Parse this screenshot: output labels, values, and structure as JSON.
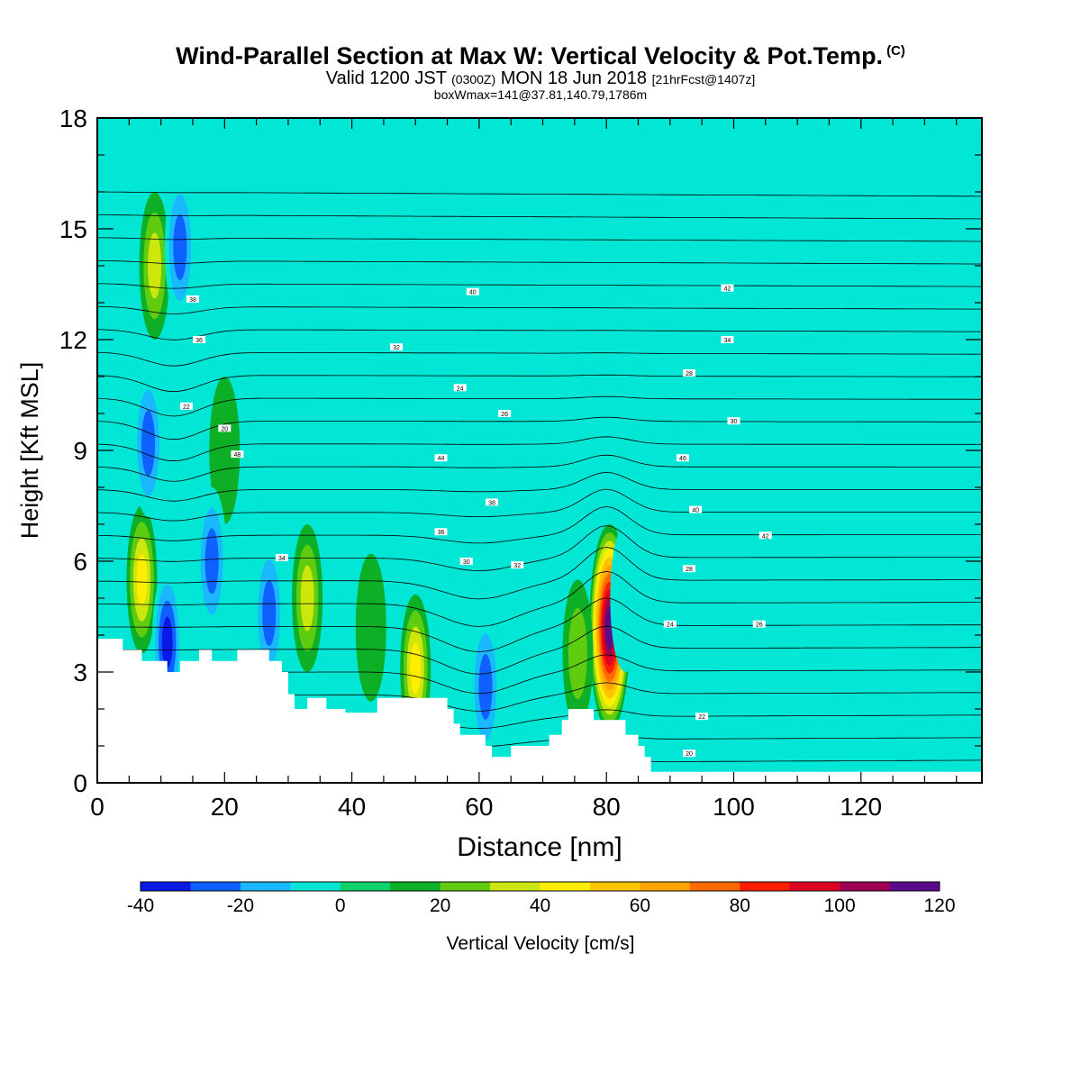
{
  "title": {
    "main": "Wind-Parallel Section at Max W: Vertical Velocity & Pot.Temp.",
    "copyright": "(C)",
    "valid_prefix": "Valid 1200 JST",
    "valid_utc": "(0300Z)",
    "valid_date": "MON 18 Jun 2018",
    "forecast": "[21hrFcst@1407z]",
    "box": "boxWmax=141@37.81,140.79,1786m"
  },
  "chart_data": {
    "type": "heatmap",
    "xlabel": "Distance [nm]",
    "ylabel": "Height [Kft MSL]",
    "xlim": [
      0,
      139
    ],
    "ylim": [
      0,
      18
    ],
    "x_ticks": [
      0,
      20,
      40,
      60,
      80,
      100,
      120
    ],
    "y_ticks": [
      0,
      3,
      6,
      9,
      12,
      15,
      18
    ],
    "colorbar": {
      "label": "Vertical Velocity [cm/s]",
      "levels": [
        -40,
        -30,
        -20,
        -10,
        0,
        10,
        20,
        30,
        40,
        50,
        60,
        70,
        80,
        90,
        100,
        110,
        120
      ],
      "tick_labels": [
        "-40",
        "-20",
        "0",
        "20",
        "40",
        "60",
        "80",
        "100",
        "120"
      ],
      "colors": [
        "#0a18e8",
        "#0e60ff",
        "#1ab8ff",
        "#02e6d6",
        "#0dd26a",
        "#0caf26",
        "#5fcc0f",
        "#cde60c",
        "#ffee00",
        "#ffc400",
        "#ffa400",
        "#ff6a00",
        "#ff1e00",
        "#dc0022",
        "#a00050",
        "#5c0a8c"
      ]
    },
    "background_color": "#02e6d6",
    "terrain_kft": [
      [
        0,
        3.9
      ],
      [
        4,
        3.9
      ],
      [
        4,
        3.6
      ],
      [
        7,
        3.6
      ],
      [
        7,
        3.3
      ],
      [
        11,
        3.3
      ],
      [
        11,
        3.0
      ],
      [
        13,
        3.0
      ],
      [
        13,
        3.3
      ],
      [
        16,
        3.3
      ],
      [
        16,
        3.6
      ],
      [
        18,
        3.6
      ],
      [
        18,
        3.3
      ],
      [
        22,
        3.3
      ],
      [
        22,
        3.6
      ],
      [
        27,
        3.6
      ],
      [
        27,
        3.3
      ],
      [
        29,
        3.3
      ],
      [
        29,
        3.0
      ],
      [
        30,
        3.0
      ],
      [
        30,
        2.4
      ],
      [
        31,
        2.4
      ],
      [
        31,
        2.0
      ],
      [
        33,
        2.0
      ],
      [
        33,
        2.3
      ],
      [
        36,
        2.3
      ],
      [
        36,
        2.0
      ],
      [
        39,
        2.0
      ],
      [
        39,
        1.9
      ],
      [
        44,
        1.9
      ],
      [
        44,
        2.3
      ],
      [
        55,
        2.3
      ],
      [
        55,
        2.0
      ],
      [
        56,
        2.0
      ],
      [
        56,
        1.6
      ],
      [
        57,
        1.6
      ],
      [
        57,
        1.3
      ],
      [
        61,
        1.3
      ],
      [
        61,
        1.0
      ],
      [
        62,
        1.0
      ],
      [
        62,
        0.7
      ],
      [
        65,
        0.7
      ],
      [
        65,
        1.0
      ],
      [
        71,
        1.0
      ],
      [
        71,
        1.3
      ],
      [
        73,
        1.3
      ],
      [
        73,
        1.7
      ],
      [
        74,
        1.7
      ],
      [
        74,
        2.0
      ],
      [
        78,
        2.0
      ],
      [
        78,
        1.7
      ],
      [
        83,
        1.7
      ],
      [
        83,
        1.3
      ],
      [
        85,
        1.3
      ],
      [
        85,
        1.0
      ],
      [
        86,
        1.0
      ],
      [
        86,
        0.7
      ],
      [
        87,
        0.7
      ],
      [
        87,
        0.3
      ],
      [
        139,
        0.3
      ]
    ],
    "features": [
      {
        "type": "updraft",
        "x": 80.5,
        "y": 4.2,
        "w": 120
      },
      {
        "type": "updraft",
        "x": 50,
        "y": 3.1,
        "w": 45
      },
      {
        "type": "updraft",
        "x": 7,
        "y": 5.5,
        "w": 40
      },
      {
        "type": "updraft",
        "x": 33,
        "y": 5.0,
        "w": 35
      },
      {
        "type": "updraft",
        "x": 9,
        "y": 14.0,
        "w": 30
      },
      {
        "type": "updraft",
        "x": 75.5,
        "y": 3.5,
        "w": 22
      },
      {
        "type": "updraft",
        "x": 43,
        "y": 4.2,
        "w": 12
      },
      {
        "type": "updraft",
        "x": 20,
        "y": 9.0,
        "w": 18
      },
      {
        "type": "downdraft",
        "x": 11,
        "y": 3.8,
        "w": -40
      },
      {
        "type": "downdraft",
        "x": 8,
        "y": 9.2,
        "w": -35
      },
      {
        "type": "downdraft",
        "x": 61,
        "y": 2.6,
        "w": -35
      },
      {
        "type": "downdraft",
        "x": 27,
        "y": 4.6,
        "w": -30
      },
      {
        "type": "downdraft",
        "x": 13,
        "y": 14.5,
        "w": -30
      },
      {
        "type": "downdraft",
        "x": 18,
        "y": 6.0,
        "w": -30
      },
      {
        "type": "downdraft",
        "x": 83,
        "y": 5.0,
        "w": -12
      },
      {
        "type": "downdraft",
        "x": 55,
        "y": 16.0,
        "w": -12
      }
    ],
    "theta_label_values": [
      "20",
      "22",
      "24",
      "26",
      "28",
      "30",
      "32",
      "34",
      "36",
      "38",
      "40",
      "42",
      "44",
      "46",
      "48"
    ]
  }
}
